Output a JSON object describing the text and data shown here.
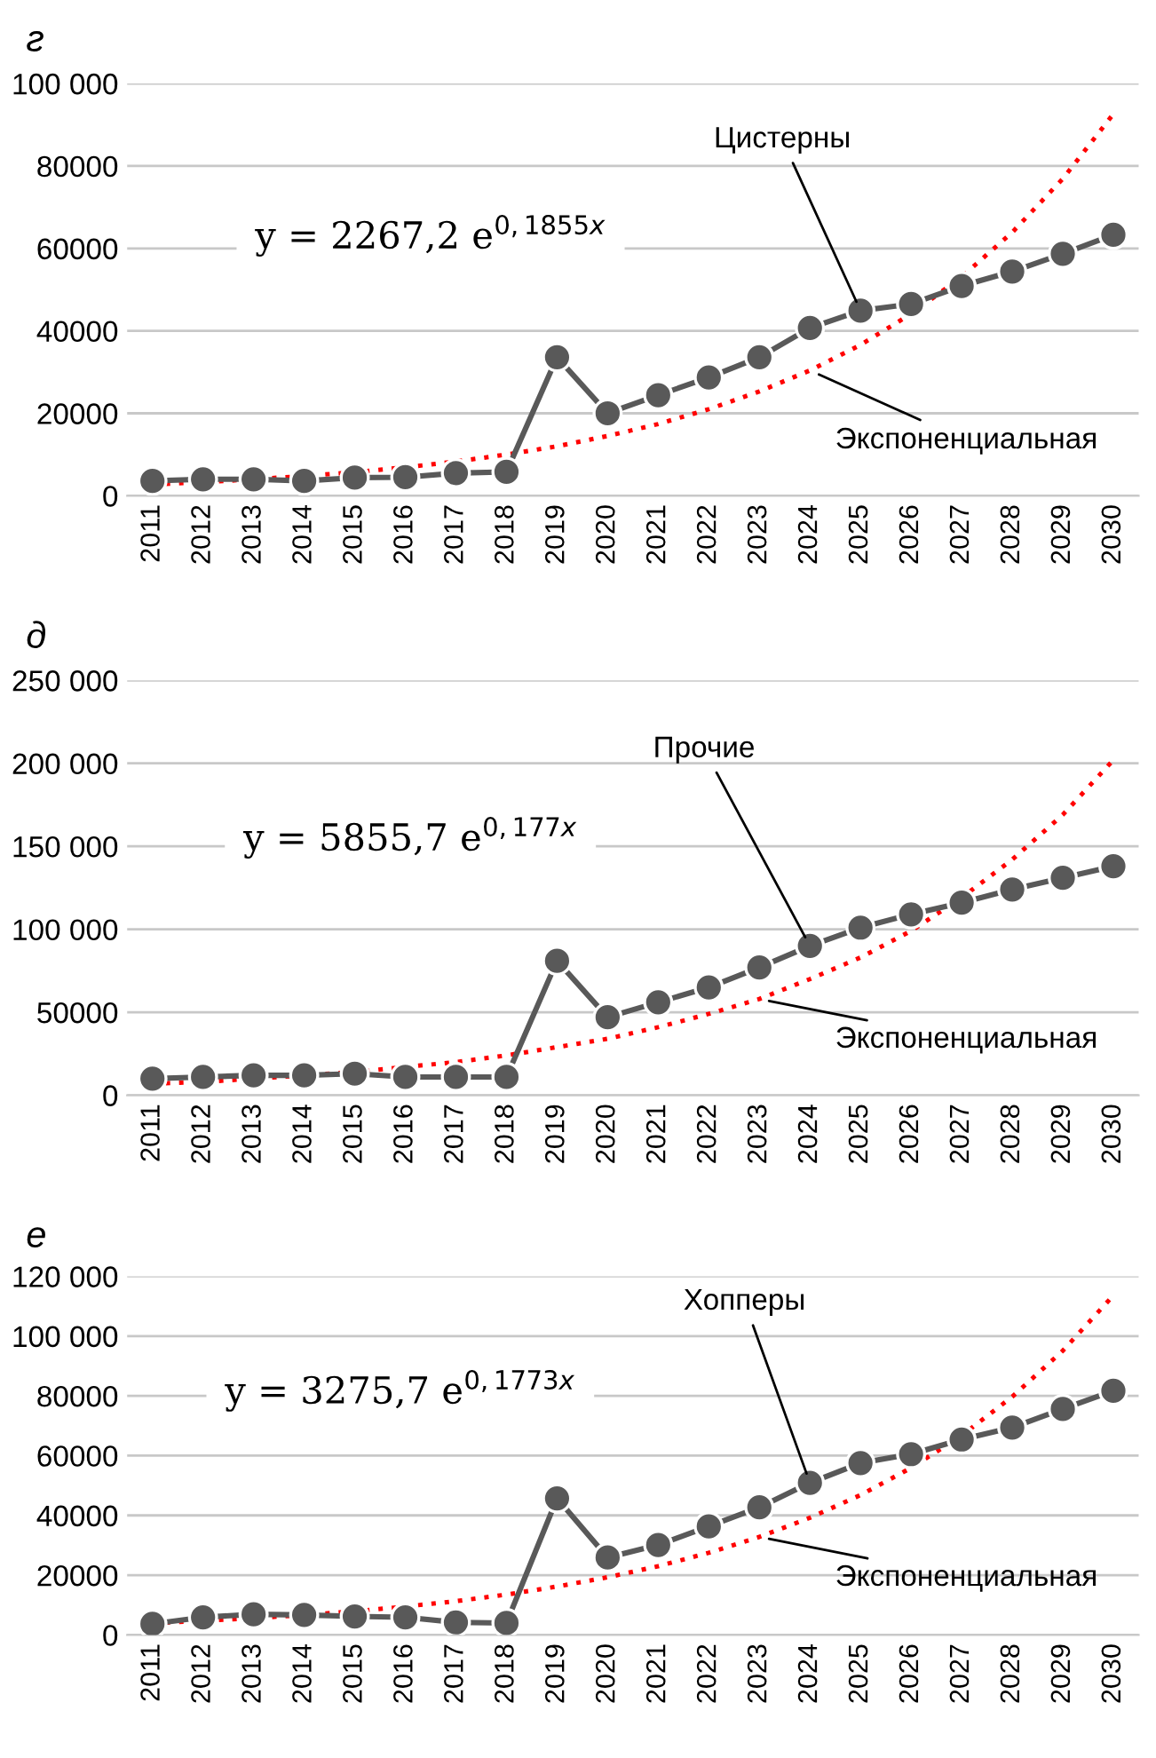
{
  "chart_data": [
    {
      "type": "line",
      "title": "г",
      "categories": [
        "2011",
        "2012",
        "2013",
        "2014",
        "2015",
        "2016",
        "2017",
        "2018",
        "2019",
        "2020",
        "2021",
        "2022",
        "2023",
        "2024",
        "2025",
        "2026",
        "2027",
        "2028",
        "2029",
        "2030"
      ],
      "series": [
        {
          "name": "Цистерны",
          "color": "#595959",
          "marker": "circle",
          "line_style": "solid",
          "values": [
            3600,
            4000,
            4000,
            3600,
            4400,
            4500,
            5500,
            5800,
            33600,
            20000,
            24400,
            28700,
            33600,
            40700,
            44900,
            46500,
            50900,
            54400,
            58700,
            63300
          ]
        },
        {
          "name": "Экспоненциальная",
          "color": "#ff0000",
          "marker": "none",
          "line_style": "dotted",
          "values": [
            2700,
            3300,
            4000,
            4800,
            5700,
            6900,
            8300,
            10000,
            12000,
            14500,
            17400,
            21000,
            25300,
            30400,
            36600,
            44100,
            53100,
            63900,
            76900,
            92600
          ]
        }
      ],
      "ylim": [
        0,
        100000
      ],
      "yticks": [
        0,
        {
          "value": 20000,
          "label": "20000"
        },
        {
          "value": 40000,
          "label": "40000"
        },
        {
          "value": 60000,
          "label": "60000"
        },
        {
          "value": 80000,
          "label": "80000"
        },
        {
          "value": 100000,
          "label": "100 000"
        }
      ],
      "grid": "y",
      "legend": false,
      "annotations": [
        "y = 2267,2 e$^{0,1855x}$"
      ]
    },
    {
      "type": "line",
      "title": "д",
      "categories": [
        "2011",
        "2012",
        "2013",
        "2014",
        "2015",
        "2016",
        "2017",
        "2018",
        "2019",
        "2020",
        "2021",
        "2022",
        "2023",
        "2024",
        "2025",
        "2026",
        "2027",
        "2028",
        "2029",
        "2030"
      ],
      "series": [
        {
          "name": "Прочие",
          "color": "#595959",
          "marker": "circle",
          "line_style": "solid",
          "values": [
            10000,
            11000,
            12000,
            12000,
            13000,
            11000,
            11000,
            11000,
            81000,
            47000,
            56000,
            65000,
            77000,
            90000,
            101000,
            109000,
            116000,
            124000,
            131000,
            138000
          ]
        },
        {
          "name": "Экспоненциальная",
          "color": "#ff0000",
          "marker": "none",
          "line_style": "dotted",
          "values": [
            7000,
            8000,
            10000,
            12000,
            14000,
            17000,
            20000,
            24000,
            29000,
            34000,
            41000,
            49000,
            58000,
            70000,
            83000,
            99000,
            119000,
            142000,
            169000,
            202000
          ]
        }
      ],
      "ylim": [
        0,
        250000
      ],
      "yticks": [
        0,
        {
          "value": 50000,
          "label": "50000"
        },
        {
          "value": 100000,
          "label": "100 000"
        },
        {
          "value": 150000,
          "label": "150 000"
        },
        {
          "value": 200000,
          "label": "200 000"
        },
        {
          "value": 250000,
          "label": "250 000"
        }
      ],
      "grid": "y",
      "legend": false,
      "annotations": [
        "y = 5855,7 e$^{0,177x}$"
      ]
    },
    {
      "type": "line",
      "title": "е",
      "categories": [
        "2011",
        "2012",
        "2013",
        "2014",
        "2015",
        "2016",
        "2017",
        "2018",
        "2019",
        "2020",
        "2021",
        "2022",
        "2023",
        "2024",
        "2025",
        "2026",
        "2027",
        "2028",
        "2029",
        "2030"
      ],
      "series": [
        {
          "name": "Хопперы",
          "color": "#595959",
          "marker": "circle",
          "line_style": "solid",
          "values": [
            3700,
            5900,
            6900,
            6700,
            6200,
            5900,
            4200,
            4000,
            45700,
            25900,
            30100,
            36300,
            42700,
            50900,
            57500,
            60500,
            65400,
            69400,
            75600,
            81700
          ]
        },
        {
          "name": "Экспоненциальная",
          "color": "#ff0000",
          "marker": "none",
          "line_style": "dotted",
          "values": [
            3900,
            4700,
            5600,
            6700,
            7900,
            9500,
            11300,
            13500,
            16200,
            19300,
            23000,
            27500,
            32800,
            39200,
            46800,
            55900,
            66700,
            79700,
            95100,
            113600
          ]
        }
      ],
      "ylim": [
        0,
        120000
      ],
      "yticks": [
        0,
        {
          "value": 20000,
          "label": "20000"
        },
        {
          "value": 40000,
          "label": "40000"
        },
        {
          "value": 60000,
          "label": "60000"
        },
        {
          "value": 80000,
          "label": "80000"
        },
        {
          "value": 100000,
          "label": "100 000"
        },
        {
          "value": 120000,
          "label": "120 000"
        }
      ],
      "grid": "y",
      "legend": false,
      "annotations": [
        "y = 3275,7 e$^{0,1773x}$"
      ]
    }
  ]
}
